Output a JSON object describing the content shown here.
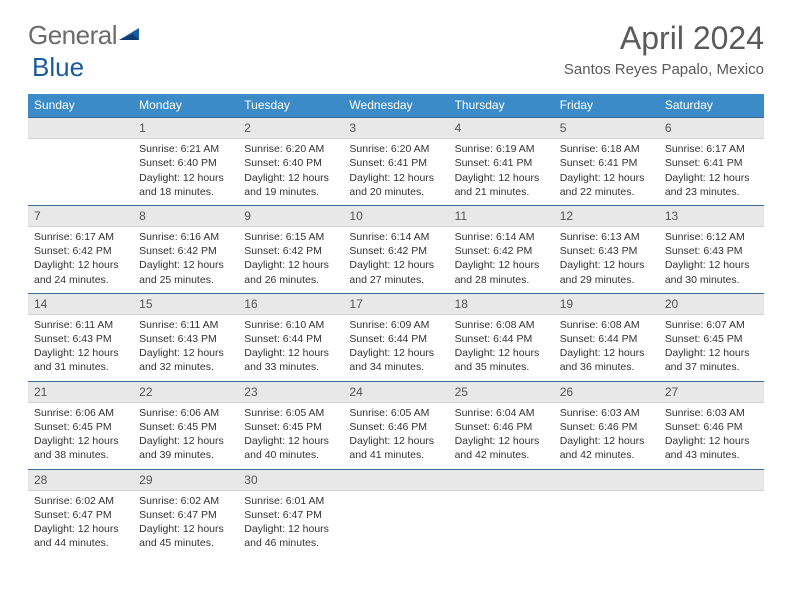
{
  "logo": {
    "text1": "General",
    "text2": "Blue"
  },
  "title": "April 2024",
  "location": "Santos Reyes Papalo, Mexico",
  "colors": {
    "header_bg": "#3b8bc9",
    "header_text": "#ffffff",
    "daynum_bg": "#e8e8e8",
    "daynum_border_top": "#3b6a90",
    "text": "#333333",
    "logo_gray": "#6b6b6b",
    "logo_blue": "#1a5a9e"
  },
  "day_names": [
    "Sunday",
    "Monday",
    "Tuesday",
    "Wednesday",
    "Thursday",
    "Friday",
    "Saturday"
  ],
  "weeks": [
    [
      {
        "n": "",
        "empty": true
      },
      {
        "n": "1",
        "sr": "6:21 AM",
        "ss": "6:40 PM",
        "dl1": "Daylight: 12 hours",
        "dl2": "and 18 minutes."
      },
      {
        "n": "2",
        "sr": "6:20 AM",
        "ss": "6:40 PM",
        "dl1": "Daylight: 12 hours",
        "dl2": "and 19 minutes."
      },
      {
        "n": "3",
        "sr": "6:20 AM",
        "ss": "6:41 PM",
        "dl1": "Daylight: 12 hours",
        "dl2": "and 20 minutes."
      },
      {
        "n": "4",
        "sr": "6:19 AM",
        "ss": "6:41 PM",
        "dl1": "Daylight: 12 hours",
        "dl2": "and 21 minutes."
      },
      {
        "n": "5",
        "sr": "6:18 AM",
        "ss": "6:41 PM",
        "dl1": "Daylight: 12 hours",
        "dl2": "and 22 minutes."
      },
      {
        "n": "6",
        "sr": "6:17 AM",
        "ss": "6:41 PM",
        "dl1": "Daylight: 12 hours",
        "dl2": "and 23 minutes."
      }
    ],
    [
      {
        "n": "7",
        "sr": "6:17 AM",
        "ss": "6:42 PM",
        "dl1": "Daylight: 12 hours",
        "dl2": "and 24 minutes."
      },
      {
        "n": "8",
        "sr": "6:16 AM",
        "ss": "6:42 PM",
        "dl1": "Daylight: 12 hours",
        "dl2": "and 25 minutes."
      },
      {
        "n": "9",
        "sr": "6:15 AM",
        "ss": "6:42 PM",
        "dl1": "Daylight: 12 hours",
        "dl2": "and 26 minutes."
      },
      {
        "n": "10",
        "sr": "6:14 AM",
        "ss": "6:42 PM",
        "dl1": "Daylight: 12 hours",
        "dl2": "and 27 minutes."
      },
      {
        "n": "11",
        "sr": "6:14 AM",
        "ss": "6:42 PM",
        "dl1": "Daylight: 12 hours",
        "dl2": "and 28 minutes."
      },
      {
        "n": "12",
        "sr": "6:13 AM",
        "ss": "6:43 PM",
        "dl1": "Daylight: 12 hours",
        "dl2": "and 29 minutes."
      },
      {
        "n": "13",
        "sr": "6:12 AM",
        "ss": "6:43 PM",
        "dl1": "Daylight: 12 hours",
        "dl2": "and 30 minutes."
      }
    ],
    [
      {
        "n": "14",
        "sr": "6:11 AM",
        "ss": "6:43 PM",
        "dl1": "Daylight: 12 hours",
        "dl2": "and 31 minutes."
      },
      {
        "n": "15",
        "sr": "6:11 AM",
        "ss": "6:43 PM",
        "dl1": "Daylight: 12 hours",
        "dl2": "and 32 minutes."
      },
      {
        "n": "16",
        "sr": "6:10 AM",
        "ss": "6:44 PM",
        "dl1": "Daylight: 12 hours",
        "dl2": "and 33 minutes."
      },
      {
        "n": "17",
        "sr": "6:09 AM",
        "ss": "6:44 PM",
        "dl1": "Daylight: 12 hours",
        "dl2": "and 34 minutes."
      },
      {
        "n": "18",
        "sr": "6:08 AM",
        "ss": "6:44 PM",
        "dl1": "Daylight: 12 hours",
        "dl2": "and 35 minutes."
      },
      {
        "n": "19",
        "sr": "6:08 AM",
        "ss": "6:44 PM",
        "dl1": "Daylight: 12 hours",
        "dl2": "and 36 minutes."
      },
      {
        "n": "20",
        "sr": "6:07 AM",
        "ss": "6:45 PM",
        "dl1": "Daylight: 12 hours",
        "dl2": "and 37 minutes."
      }
    ],
    [
      {
        "n": "21",
        "sr": "6:06 AM",
        "ss": "6:45 PM",
        "dl1": "Daylight: 12 hours",
        "dl2": "and 38 minutes."
      },
      {
        "n": "22",
        "sr": "6:06 AM",
        "ss": "6:45 PM",
        "dl1": "Daylight: 12 hours",
        "dl2": "and 39 minutes."
      },
      {
        "n": "23",
        "sr": "6:05 AM",
        "ss": "6:45 PM",
        "dl1": "Daylight: 12 hours",
        "dl2": "and 40 minutes."
      },
      {
        "n": "24",
        "sr": "6:05 AM",
        "ss": "6:46 PM",
        "dl1": "Daylight: 12 hours",
        "dl2": "and 41 minutes."
      },
      {
        "n": "25",
        "sr": "6:04 AM",
        "ss": "6:46 PM",
        "dl1": "Daylight: 12 hours",
        "dl2": "and 42 minutes."
      },
      {
        "n": "26",
        "sr": "6:03 AM",
        "ss": "6:46 PM",
        "dl1": "Daylight: 12 hours",
        "dl2": "and 42 minutes."
      },
      {
        "n": "27",
        "sr": "6:03 AM",
        "ss": "6:46 PM",
        "dl1": "Daylight: 12 hours",
        "dl2": "and 43 minutes."
      }
    ],
    [
      {
        "n": "28",
        "sr": "6:02 AM",
        "ss": "6:47 PM",
        "dl1": "Daylight: 12 hours",
        "dl2": "and 44 minutes."
      },
      {
        "n": "29",
        "sr": "6:02 AM",
        "ss": "6:47 PM",
        "dl1": "Daylight: 12 hours",
        "dl2": "and 45 minutes."
      },
      {
        "n": "30",
        "sr": "6:01 AM",
        "ss": "6:47 PM",
        "dl1": "Daylight: 12 hours",
        "dl2": "and 46 minutes."
      },
      {
        "n": "",
        "empty": true
      },
      {
        "n": "",
        "empty": true
      },
      {
        "n": "",
        "empty": true
      },
      {
        "n": "",
        "empty": true
      }
    ]
  ]
}
